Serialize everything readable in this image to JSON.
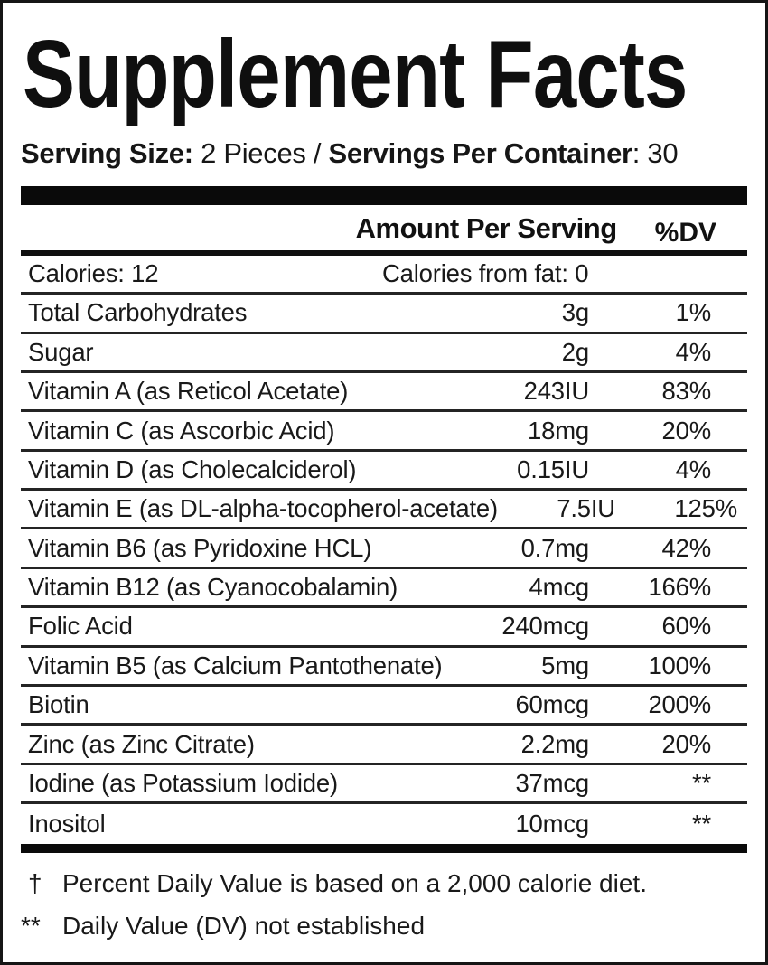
{
  "title": "Supplement Facts",
  "serving": {
    "size_label": "Serving Size:",
    "size_value": " 2 Pieces / ",
    "container_label": "Servings Per Container",
    "container_value": ": 30"
  },
  "header": {
    "amount": "Amount Per Serving",
    "dv": "%DV"
  },
  "calories_row": {
    "left": "Calories: 12",
    "right": "Calories from fat: 0"
  },
  "rows": [
    {
      "name": "Total Carbohydrates",
      "amount": "3g",
      "dv": "1%"
    },
    {
      "name": "Sugar",
      "amount": "2g",
      "dv": "4%"
    },
    {
      "name": "Vitamin A (as Reticol Acetate)",
      "amount": "243IU",
      "dv": "83%"
    },
    {
      "name": "Vitamin C (as Ascorbic Acid)",
      "amount": "18mg",
      "dv": "20%"
    },
    {
      "name": "Vitamin D (as Cholecalciderol)",
      "amount": "0.15IU",
      "dv": "4%"
    },
    {
      "name": "Vitamin E (as DL-alpha-tocopherol-acetate)",
      "amount": "7.5IU",
      "dv": "125%"
    },
    {
      "name": "Vitamin B6 (as Pyridoxine HCL)",
      "amount": "0.7mg",
      "dv": "42%"
    },
    {
      "name": "Vitamin B12 (as Cyanocobalamin)",
      "amount": "4mcg",
      "dv": "166%"
    },
    {
      "name": "Folic Acid",
      "amount": "240mcg",
      "dv": "60%"
    },
    {
      "name": "Vitamin B5 (as Calcium Pantothenate)",
      "amount": "5mg",
      "dv": "100%"
    },
    {
      "name": "Biotin",
      "amount": "60mcg",
      "dv": "200%"
    },
    {
      "name": "Zinc (as Zinc Citrate)",
      "amount": "2.2mg",
      "dv": "20%"
    },
    {
      "name": "Iodine (as Potassium Iodide)",
      "amount": "37mcg",
      "dv": "**"
    },
    {
      "name": "Inositol",
      "amount": "10mcg",
      "dv": "**"
    }
  ],
  "footnotes": [
    {
      "symbol": "†",
      "text": "Percent Daily Value is based on a 2,000 calorie diet."
    },
    {
      "symbol": "**",
      "text": "Daily Value (DV) not established"
    }
  ],
  "colors": {
    "background": "#ffffff",
    "text": "#1a1a1a",
    "rule": "#242424",
    "bar": "#0a0a0a",
    "border": "#151515"
  }
}
